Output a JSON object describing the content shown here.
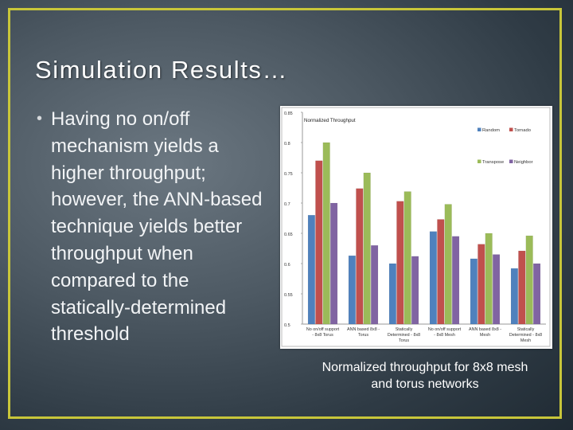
{
  "slide": {
    "title": "Simulation Results…",
    "bullet": "Having no on/off mechanism yields a higher throughput; however, the ANN-based technique yields better throughput when compared to the statically-determined threshold",
    "bullet_marker": "•",
    "caption": "Normalized throughput for 8x8 mesh and torus networks",
    "frame_color": "#c8c63a"
  },
  "chart_data": {
    "type": "bar",
    "title": "Normalized Throughput",
    "categories": [
      [
        "No on/off support",
        "- 8x8 Torus"
      ],
      [
        "ANN based 8x8 -",
        "Torus"
      ],
      [
        "Statically",
        "Determined - 8x8",
        "Torus"
      ],
      [
        "No on/off support",
        "- 8x8 Mesh"
      ],
      [
        "ANN based 8x8 -",
        "Mesh"
      ],
      [
        "Statically",
        "Determined - 8x8",
        "Mesh"
      ]
    ],
    "series": [
      {
        "name": "Random",
        "color": "#4f81bd",
        "values": [
          0.68,
          0.613,
          0.6,
          0.653,
          0.608,
          0.592
        ]
      },
      {
        "name": "Tornado",
        "color": "#c0504d",
        "values": [
          0.77,
          0.724,
          0.703,
          0.673,
          0.632,
          0.621
        ]
      },
      {
        "name": "Transpose",
        "color": "#9bbb59",
        "values": [
          0.8,
          0.75,
          0.719,
          0.698,
          0.65,
          0.646
        ]
      },
      {
        "name": "Neighbor",
        "color": "#8064a2",
        "values": [
          0.7,
          0.63,
          0.612,
          0.645,
          0.615,
          0.6
        ]
      }
    ],
    "yticks": [
      "0.85",
      "0.8",
      "0.75",
      "0.7",
      "0.65",
      "0.6",
      "0.55",
      "0.5"
    ],
    "ylim": [
      0.5,
      0.85
    ],
    "legend_position": "top-right",
    "grid": false
  }
}
